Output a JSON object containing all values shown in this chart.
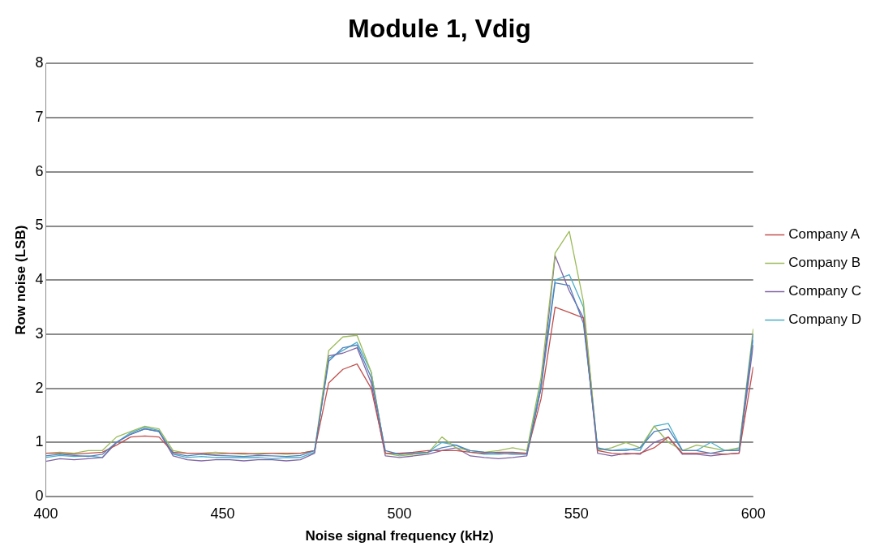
{
  "chart_data": {
    "type": "line",
    "title": "Module 1, Vdig",
    "xlabel": "Noise signal frequency (kHz)",
    "ylabel": "Row noise (LSB)",
    "x": [
      400,
      404,
      408,
      412,
      416,
      420,
      424,
      428,
      432,
      436,
      440,
      444,
      448,
      452,
      456,
      460,
      464,
      468,
      472,
      476,
      480,
      484,
      488,
      492,
      496,
      500,
      504,
      508,
      512,
      516,
      520,
      524,
      528,
      532,
      536,
      540,
      544,
      548,
      552,
      556,
      560,
      564,
      568,
      572,
      576,
      580,
      584,
      588,
      592,
      596,
      600
    ],
    "xlim": [
      400,
      600
    ],
    "xticks": [
      400,
      450,
      500,
      550,
      600
    ],
    "ylim": [
      0,
      8
    ],
    "yticks": [
      0,
      1,
      2,
      3,
      4,
      5,
      6,
      7,
      8
    ],
    "grid": "y",
    "legend": "right",
    "marker": "none",
    "line_style": "solid",
    "series": [
      {
        "color": "#4f81bd",
        "values": [
          0.75,
          0.78,
          0.76,
          0.74,
          0.78,
          1.0,
          1.15,
          1.25,
          1.2,
          0.8,
          0.75,
          0.78,
          0.76,
          0.75,
          0.74,
          0.76,
          0.75,
          0.74,
          0.76,
          0.85,
          2.5,
          2.75,
          2.8,
          2.2,
          0.85,
          0.78,
          0.8,
          0.82,
          0.9,
          0.95,
          0.85,
          0.82,
          0.8,
          0.78,
          0.78,
          2.0,
          3.95,
          3.9,
          3.2,
          0.9,
          0.85,
          0.85,
          0.9,
          1.2,
          1.25,
          0.85,
          0.85,
          0.8,
          0.85,
          0.85,
          3.0
        ]
      },
      {
        "name": "Company A",
        "color": "#c0504d",
        "values": [
          0.8,
          0.8,
          0.78,
          0.8,
          0.82,
          0.95,
          1.1,
          1.12,
          1.1,
          0.82,
          0.8,
          0.8,
          0.78,
          0.8,
          0.8,
          0.78,
          0.8,
          0.8,
          0.8,
          0.85,
          2.1,
          2.35,
          2.45,
          2.0,
          0.8,
          0.8,
          0.82,
          0.85,
          0.85,
          0.85,
          0.82,
          0.8,
          0.82,
          0.82,
          0.8,
          1.8,
          3.5,
          3.4,
          3.3,
          0.85,
          0.8,
          0.78,
          0.8,
          0.9,
          1.1,
          0.8,
          0.8,
          0.8,
          0.78,
          0.8,
          2.4
        ]
      },
      {
        "name": "Company B",
        "color": "#9bbb59",
        "values": [
          0.8,
          0.82,
          0.8,
          0.85,
          0.85,
          1.1,
          1.2,
          1.3,
          1.25,
          0.85,
          0.8,
          0.8,
          0.82,
          0.8,
          0.78,
          0.8,
          0.8,
          0.78,
          0.8,
          0.85,
          2.7,
          2.95,
          2.98,
          2.3,
          0.8,
          0.75,
          0.78,
          0.8,
          1.1,
          0.9,
          0.85,
          0.82,
          0.85,
          0.9,
          0.85,
          2.2,
          4.5,
          4.9,
          3.6,
          0.85,
          0.9,
          1.0,
          0.9,
          1.3,
          1.0,
          0.85,
          0.95,
          0.9,
          0.85,
          0.9,
          3.1
        ]
      },
      {
        "name": "Company C",
        "color": "#8064a2",
        "values": [
          0.65,
          0.7,
          0.68,
          0.7,
          0.72,
          1.0,
          1.15,
          1.25,
          1.2,
          0.75,
          0.68,
          0.66,
          0.68,
          0.68,
          0.66,
          0.68,
          0.68,
          0.66,
          0.68,
          0.8,
          2.6,
          2.65,
          2.75,
          2.1,
          0.75,
          0.72,
          0.75,
          0.78,
          0.85,
          0.9,
          0.75,
          0.72,
          0.7,
          0.72,
          0.75,
          2.0,
          4.45,
          3.8,
          3.3,
          0.8,
          0.75,
          0.8,
          0.78,
          1.0,
          1.1,
          0.78,
          0.78,
          0.75,
          0.78,
          0.8,
          2.8
        ]
      },
      {
        "name": "Company D",
        "color": "#4bacc6",
        "values": [
          0.72,
          0.76,
          0.74,
          0.75,
          0.72,
          1.0,
          1.18,
          1.28,
          1.22,
          0.78,
          0.72,
          0.74,
          0.72,
          0.72,
          0.72,
          0.72,
          0.7,
          0.72,
          0.72,
          0.82,
          2.55,
          2.7,
          2.85,
          2.3,
          0.8,
          0.78,
          0.8,
          0.82,
          1.0,
          0.95,
          0.82,
          0.78,
          0.78,
          0.8,
          0.8,
          2.1,
          4.0,
          4.1,
          3.5,
          0.88,
          0.85,
          0.88,
          0.85,
          1.3,
          1.35,
          0.85,
          0.85,
          1.0,
          0.85,
          0.88,
          2.9
        ]
      }
    ]
  }
}
